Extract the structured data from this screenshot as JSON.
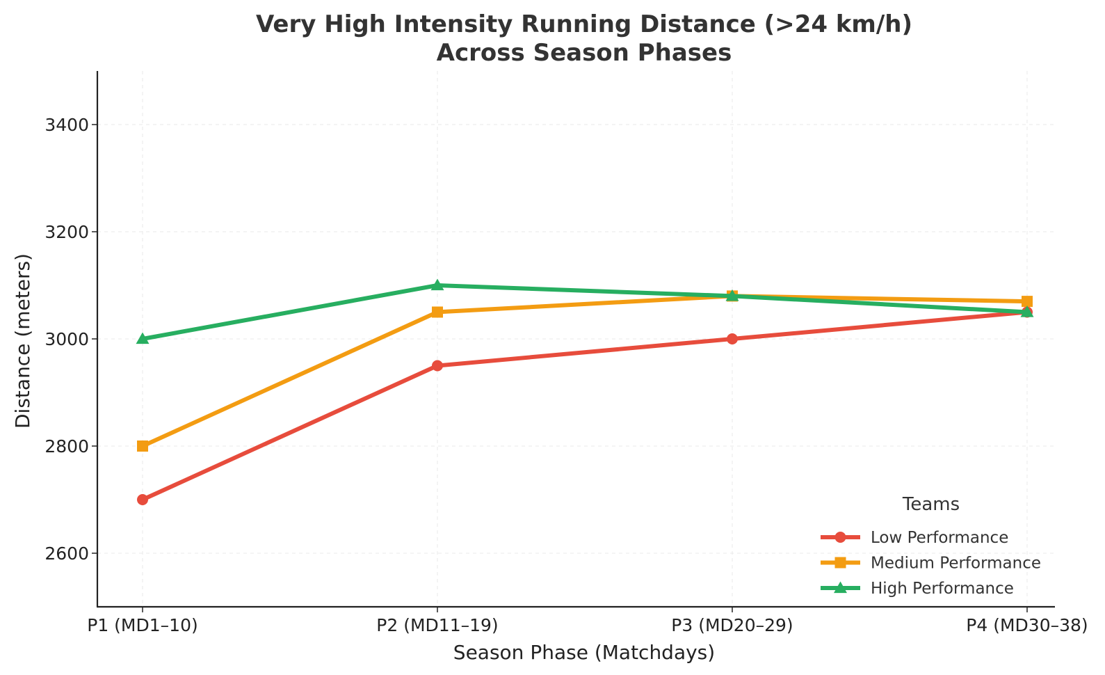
{
  "chart_data": {
    "type": "line",
    "title": "Very High Intensity Running Distance (>24 km/h)",
    "subtitle": "Across Season Phases",
    "xlabel": "Season Phase (Matchdays)",
    "ylabel": "Distance (meters)",
    "categories": [
      "P1 (MD1–10)",
      "P2 (MD11–19)",
      "P3 (MD20–29)",
      "P4 (MD30–38)"
    ],
    "ylim": [
      2500,
      3500
    ],
    "yticks": [
      2600,
      2800,
      3000,
      3200,
      3400
    ],
    "grid": true,
    "legend": {
      "title": "Teams",
      "position": "lower-right"
    },
    "series": [
      {
        "name": "Low Performance",
        "values": [
          2700,
          2950,
          3000,
          3050
        ],
        "color": "#e74c3c",
        "marker": "circle"
      },
      {
        "name": "Medium Performance",
        "values": [
          2800,
          3050,
          3080,
          3070
        ],
        "color": "#f39c12",
        "marker": "square"
      },
      {
        "name": "High Performance",
        "values": [
          3000,
          3100,
          3080,
          3050
        ],
        "color": "#27ae60",
        "marker": "triangle"
      }
    ]
  }
}
